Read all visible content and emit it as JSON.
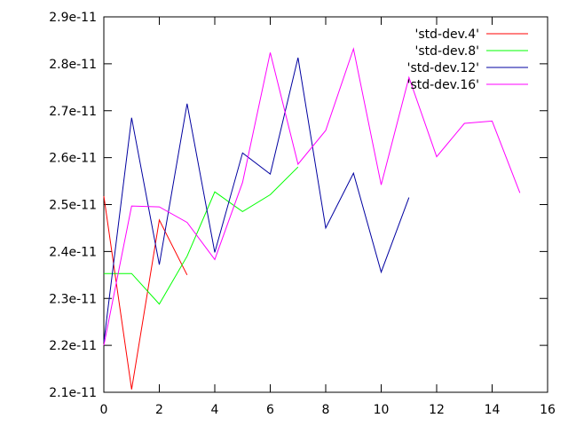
{
  "chart_data": {
    "type": "line",
    "title": "",
    "xlabel": "",
    "ylabel": "",
    "xlim": [
      0,
      16
    ],
    "ylim": [
      2.1e-11,
      2.9e-11
    ],
    "x_ticks": [
      0,
      2,
      4,
      6,
      8,
      10,
      12,
      14,
      16
    ],
    "x_tick_labels": [
      "0",
      "2",
      "4",
      "6",
      "8",
      "10",
      "12",
      "14",
      "16"
    ],
    "y_ticks": [
      2.1e-11,
      2.2e-11,
      2.3e-11,
      2.4e-11,
      2.5e-11,
      2.6e-11,
      2.7e-11,
      2.8e-11,
      2.9e-11
    ],
    "y_tick_labels": [
      "2.1e-11",
      "2.2e-11",
      "2.3e-11",
      "2.4e-11",
      "2.5e-11",
      "2.6e-11",
      "2.7e-11",
      "2.8e-11",
      "2.9e-11"
    ],
    "grid": false,
    "legend_position": "top-right",
    "series": [
      {
        "name": "'std-dev.4'",
        "color": "#ff0000",
        "x": [
          0,
          1,
          2,
          3
        ],
        "y": [
          2.518e-11,
          2.106e-11,
          2.467e-11,
          2.35e-11
        ]
      },
      {
        "name": "'std-dev.8'",
        "color": "#00ff00",
        "x": [
          0,
          1,
          2,
          3,
          4,
          5,
          6,
          7
        ],
        "y": [
          2.353e-11,
          2.353e-11,
          2.288e-11,
          2.39e-11,
          2.527e-11,
          2.485e-11,
          2.521e-11,
          2.58e-11
        ]
      },
      {
        "name": "'std-dev.12'",
        "color": "#0000a0",
        "x": [
          0,
          1,
          2,
          3,
          4,
          5,
          6,
          7,
          8,
          9,
          10,
          11
        ],
        "y": [
          2.207e-11,
          2.685e-11,
          2.372e-11,
          2.715e-11,
          2.398e-11,
          2.61e-11,
          2.565e-11,
          2.813e-11,
          2.45e-11,
          2.567e-11,
          2.356e-11,
          2.515e-11
        ]
      },
      {
        "name": "'std-dev.16'",
        "color": "#ff00ff",
        "x": [
          0,
          1,
          2,
          3,
          4,
          5,
          6,
          7,
          8,
          9,
          10,
          11,
          12,
          13,
          14,
          15
        ],
        "y": [
          2.2e-11,
          2.497e-11,
          2.495e-11,
          2.462e-11,
          2.383e-11,
          2.547e-11,
          2.824e-11,
          2.586e-11,
          2.658e-11,
          2.832e-11,
          2.542e-11,
          2.771e-11,
          2.602e-11,
          2.673e-11,
          2.678e-11,
          2.525e-11
        ]
      }
    ]
  }
}
